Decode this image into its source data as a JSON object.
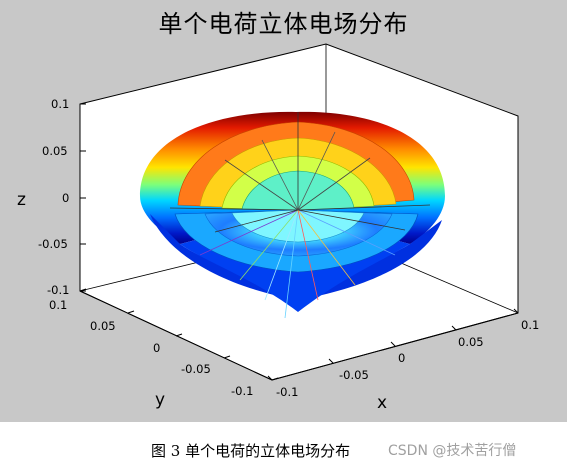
{
  "figure": {
    "title": "单个电荷立体电场分布",
    "z_label": "z",
    "y_label": "y",
    "x_label": "x",
    "z_ticks": [
      "0.1",
      "0.05",
      "0",
      "-0.05",
      "-0.1"
    ],
    "y_ticks": [
      "0.1",
      "0.05",
      "0",
      "-0.05",
      "-0.1"
    ],
    "x_ticks": [
      "-0.1",
      "-0.05",
      "0",
      "0.05",
      "0.1"
    ],
    "colormap": "jet",
    "surface": "nested cut-away hemispherical shells colored by z",
    "field_lines": "radial lines emanating from the charge at the origin"
  },
  "caption": "图 3 单个电荷的立体电场分布",
  "watermark": "CSDN @技术苦行僧"
}
